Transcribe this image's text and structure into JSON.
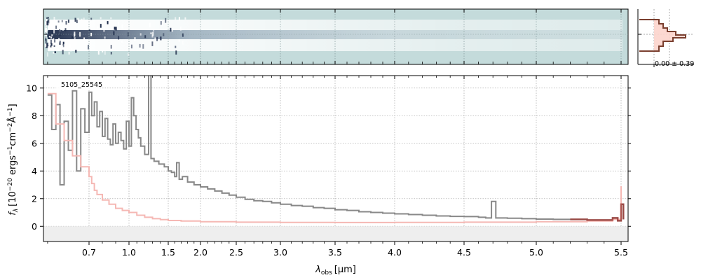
{
  "chart_data": [
    {
      "panel": "2d-spectrum",
      "type": "heatmap",
      "description_in_image": "",
      "colormap": [
        "#c4dbdb",
        "#ffffff",
        "#1c2a48"
      ],
      "profile_label": "0.00 ± 0.39"
    },
    {
      "panel": "1d-spectrum",
      "type": "line",
      "label": "5105_25545",
      "xlabel_main": "λ",
      "xlabel_sub": "obs",
      "xlabel_unit": "[μm]",
      "ylabel": "f_λ [10^-20 ergs^-1 cm^-2 Å^-1]",
      "ylabel_parts": {
        "f": "f",
        "lambda": "λ",
        "open": "[10",
        "e1": "−20",
        "ergs": " ergs",
        "e2": "−1",
        "cm": "cm",
        "e3": "−2",
        "A": "Å",
        "e4": "−1",
        "close": "]"
      },
      "xticks": [
        0.7,
        1.0,
        1.5,
        2.0,
        2.5,
        3.0,
        3.5,
        4.0,
        4.5,
        5.0,
        5.5
      ],
      "xtick_labels": [
        "0.7",
        "1.0",
        "1.5",
        "2.0",
        "2.5",
        "3.0",
        "3.5",
        "4.0",
        "4.5",
        "5.0",
        "5.5"
      ],
      "yticks": [
        0,
        2,
        4,
        6,
        8,
        10
      ],
      "ytick_labels": [
        "0",
        "2",
        "4",
        "6",
        "8",
        "10"
      ],
      "xlim": [
        0.59,
        5.53
      ],
      "ylim": [
        -1.1,
        10.9
      ],
      "grid": true,
      "series": [
        {
          "role": "flux",
          "color": "#888888",
          "points": [
            [
              0.6,
              9.5
            ],
            [
              0.61,
              7.0
            ],
            [
              0.62,
              8.8
            ],
            [
              0.63,
              3.0
            ],
            [
              0.64,
              7.6
            ],
            [
              0.65,
              5.5
            ],
            [
              0.66,
              9.8
            ],
            [
              0.67,
              4.0
            ],
            [
              0.68,
              8.5
            ],
            [
              0.69,
              6.8
            ],
            [
              0.7,
              9.7
            ],
            [
              0.72,
              8.0
            ],
            [
              0.74,
              9.0
            ],
            [
              0.76,
              7.2
            ],
            [
              0.78,
              8.3
            ],
            [
              0.8,
              6.5
            ],
            [
              0.82,
              7.8
            ],
            [
              0.84,
              6.3
            ],
            [
              0.86,
              5.9
            ],
            [
              0.88,
              7.4
            ],
            [
              0.9,
              6.0
            ],
            [
              0.92,
              6.8
            ],
            [
              0.94,
              6.2
            ],
            [
              0.96,
              5.6
            ],
            [
              0.98,
              7.6
            ],
            [
              1.0,
              5.8
            ],
            [
              1.03,
              9.3
            ],
            [
              1.06,
              8.0
            ],
            [
              1.09,
              7.0
            ],
            [
              1.12,
              6.4
            ],
            [
              1.15,
              5.8
            ],
            [
              1.2,
              5.2
            ],
            [
              1.25,
              11.0
            ],
            [
              1.28,
              4.9
            ],
            [
              1.32,
              4.7
            ],
            [
              1.38,
              4.5
            ],
            [
              1.45,
              4.3
            ],
            [
              1.5,
              4.0
            ],
            [
              1.55,
              3.9
            ],
            [
              1.6,
              3.6
            ],
            [
              1.63,
              4.6
            ],
            [
              1.67,
              3.4
            ],
            [
              1.72,
              3.6
            ],
            [
              1.8,
              3.2
            ],
            [
              1.9,
              3.0
            ],
            [
              2.0,
              2.85
            ],
            [
              2.1,
              2.7
            ],
            [
              2.2,
              2.55
            ],
            [
              2.3,
              2.4
            ],
            [
              2.4,
              2.25
            ],
            [
              2.5,
              2.1
            ],
            [
              2.6,
              1.95
            ],
            [
              2.7,
              1.85
            ],
            [
              2.8,
              1.8
            ],
            [
              2.9,
              1.7
            ],
            [
              3.0,
              1.6
            ],
            [
              3.1,
              1.5
            ],
            [
              3.2,
              1.45
            ],
            [
              3.3,
              1.35
            ],
            [
              3.4,
              1.3
            ],
            [
              3.5,
              1.2
            ],
            [
              3.6,
              1.15
            ],
            [
              3.7,
              1.05
            ],
            [
              3.8,
              1.0
            ],
            [
              3.9,
              0.95
            ],
            [
              4.0,
              0.9
            ],
            [
              4.1,
              0.85
            ],
            [
              4.2,
              0.8
            ],
            [
              4.3,
              0.75
            ],
            [
              4.4,
              0.72
            ],
            [
              4.5,
              0.7
            ],
            [
              4.6,
              0.65
            ],
            [
              4.65,
              0.6
            ],
            [
              4.69,
              1.8
            ],
            [
              4.72,
              0.6
            ],
            [
              4.8,
              0.58
            ],
            [
              4.9,
              0.55
            ],
            [
              5.0,
              0.52
            ],
            [
              5.1,
              0.5
            ],
            [
              5.2,
              0.5
            ],
            [
              5.3,
              0.45
            ],
            [
              5.4,
              0.45
            ],
            [
              5.45,
              0.6
            ],
            [
              5.48,
              0.4
            ],
            [
              5.5,
              1.6
            ],
            [
              5.51,
              0.5
            ]
          ]
        },
        {
          "role": "error",
          "color": "#f5b8b4",
          "points": [
            [
              0.6,
              9.6
            ],
            [
              0.62,
              7.4
            ],
            [
              0.64,
              6.2
            ],
            [
              0.66,
              5.1
            ],
            [
              0.68,
              4.3
            ],
            [
              0.7,
              3.6
            ],
            [
              0.72,
              3.1
            ],
            [
              0.74,
              2.6
            ],
            [
              0.76,
              2.3
            ],
            [
              0.8,
              1.9
            ],
            [
              0.85,
              1.6
            ],
            [
              0.9,
              1.3
            ],
            [
              0.95,
              1.15
            ],
            [
              1.0,
              1.0
            ],
            [
              1.1,
              0.8
            ],
            [
              1.2,
              0.65
            ],
            [
              1.3,
              0.55
            ],
            [
              1.4,
              0.48
            ],
            [
              1.5,
              0.42
            ],
            [
              1.7,
              0.38
            ],
            [
              2.0,
              0.33
            ],
            [
              2.5,
              0.3
            ],
            [
              3.0,
              0.28
            ],
            [
              3.5,
              0.27
            ],
            [
              4.0,
              0.28
            ],
            [
              4.5,
              0.3
            ],
            [
              5.0,
              0.33
            ],
            [
              5.3,
              0.38
            ],
            [
              5.45,
              0.5
            ],
            [
              5.5,
              2.9
            ]
          ]
        }
      ]
    }
  ]
}
